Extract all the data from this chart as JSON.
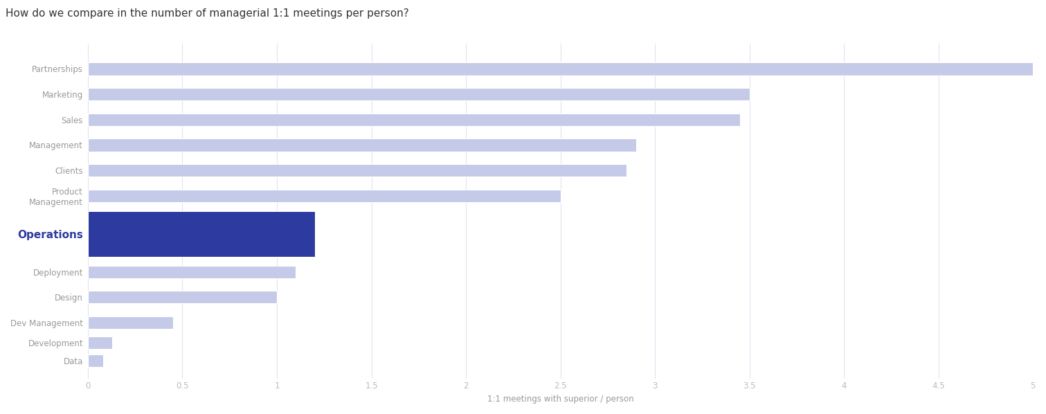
{
  "title": "How do we compare in the number of managerial 1:1 meetings per person?",
  "xlabel": "1:1 meetings with superior / person",
  "categories": [
    "Partnerships",
    "Marketing",
    "Sales",
    "Management",
    "Clients",
    "Product\nManagement",
    "Operations",
    "Deployment",
    "Design",
    "Dev Management",
    "Development",
    "Data"
  ],
  "values": [
    5.0,
    3.5,
    3.45,
    2.9,
    2.85,
    2.5,
    1.2,
    1.1,
    1.0,
    0.45,
    0.13,
    0.08
  ],
  "bar_colors": [
    "#c5cae9",
    "#c5cae9",
    "#c5cae9",
    "#c5cae9",
    "#c5cae9",
    "#c5cae9",
    "#2d3aa0",
    "#c5cae9",
    "#c5cae9",
    "#c5cae9",
    "#c5cae9",
    "#c5cae9"
  ],
  "bar_heights": [
    0.5,
    0.5,
    0.5,
    0.5,
    0.5,
    0.5,
    1.8,
    0.5,
    0.5,
    0.5,
    0.5,
    0.5
  ],
  "highlight_index": 6,
  "xlim": [
    0,
    5
  ],
  "xticks": [
    0,
    0.5,
    1.0,
    1.5,
    2.0,
    2.5,
    3.0,
    3.5,
    4.0,
    4.5,
    5.0
  ],
  "background_color": "#ffffff",
  "grid_color": "#dde0ee",
  "title_fontsize": 11,
  "label_fontsize": 8.5,
  "tick_fontsize": 8.5,
  "highlight_label_fontsize": 11,
  "highlight_label_color": "#2d3aa0",
  "y_positions": [
    11,
    10,
    9,
    8,
    7,
    6,
    4.5,
    3,
    2,
    1,
    0.2,
    -0.5
  ]
}
